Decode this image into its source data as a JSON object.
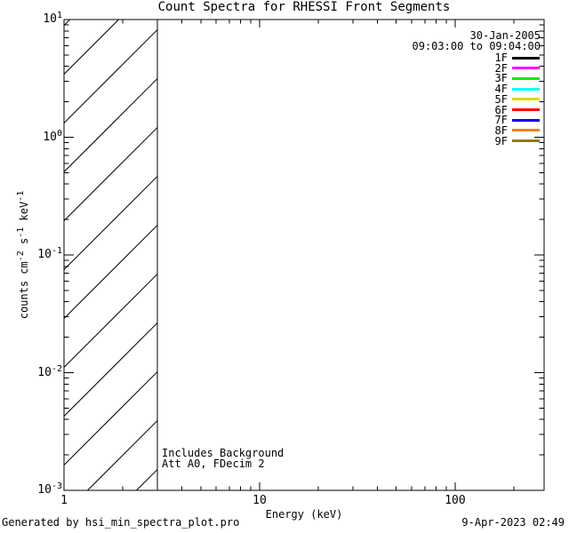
{
  "colors": {
    "background": "#ffffff",
    "foreground": "#000000"
  },
  "footer": {
    "left": "Generated by hsi_min_spectra_plot.pro",
    "right": "9-Apr-2023 02:49"
  },
  "chart_data": {
    "type": "line",
    "title": "Count Spectra for RHESSI Front Segments",
    "xlabel": "Energy (keV)",
    "ylabel_parts": [
      {
        "t": "counts cm"
      },
      {
        "sup": "-2"
      },
      {
        "t": " s"
      },
      {
        "sup": "-1"
      },
      {
        "t": " keV"
      },
      {
        "sup": "-1"
      }
    ],
    "x_scale": "log",
    "y_scale": "log",
    "x_range": [
      1,
      285
    ],
    "y_range": [
      0.001,
      10
    ],
    "x_major_ticks": [
      {
        "value": 1,
        "label": "1"
      },
      {
        "value": 10,
        "label": "10"
      },
      {
        "value": 100,
        "label": "100"
      }
    ],
    "y_major_ticks": [
      {
        "value": 10,
        "base": "10",
        "exp": "1"
      },
      {
        "value": 1,
        "base": "10",
        "exp": "0"
      },
      {
        "value": 0.1,
        "base": "10",
        "exp": "-1"
      },
      {
        "value": 0.01,
        "base": "10",
        "exp": "-2"
      },
      {
        "value": 0.001,
        "base": "10",
        "exp": "-3"
      }
    ],
    "grid": false,
    "series": [],
    "hatch_band": {
      "x_start_kev": 1,
      "x_end_kev": 3,
      "style": "diagonal-hatch"
    },
    "annotations": [
      "Includes Background",
      "Att A0, FDecim 2"
    ],
    "legend": {
      "position": "top-right",
      "date": "30-Jan-2005",
      "time_range": "09:03:00 to 09:04:00",
      "entries": [
        {
          "label": "1F",
          "color": "#000000"
        },
        {
          "label": "2F",
          "color": "#ff00ff"
        },
        {
          "label": "3F",
          "color": "#00ee00"
        },
        {
          "label": "4F",
          "color": "#00ffff"
        },
        {
          "label": "5F",
          "color": "#dcdc00"
        },
        {
          "label": "6F",
          "color": "#ff0000"
        },
        {
          "label": "7F",
          "color": "#0000ff"
        },
        {
          "label": "8F",
          "color": "#ef8500"
        },
        {
          "label": "9F",
          "color": "#8b8000"
        }
      ]
    }
  }
}
